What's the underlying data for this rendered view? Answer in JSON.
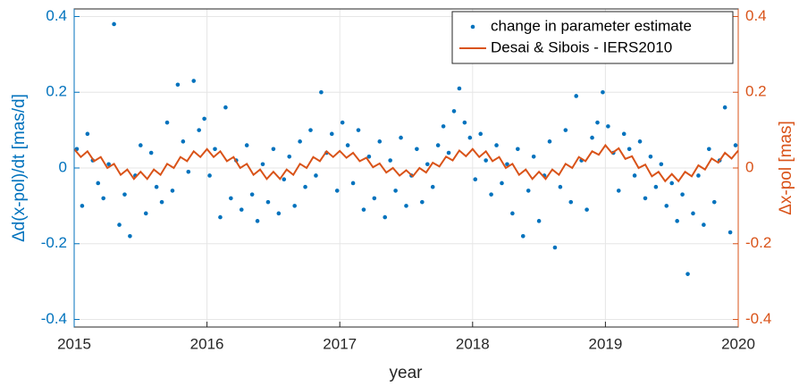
{
  "chart_data": {
    "type": "scatter",
    "xlabel": "year",
    "ylabel": "Δd(x-pol)/dt [mas/d]",
    "y2label": "Δx-pol [mas]",
    "xlim": [
      2015,
      2020
    ],
    "xticks": [
      2015,
      2016,
      2017,
      2018,
      2019,
      2020
    ],
    "ylim": [
      -0.42,
      0.42
    ],
    "yticks": [
      -0.4,
      -0.2,
      0,
      0.2,
      0.4
    ],
    "y2lim": [
      -0.42,
      0.42
    ],
    "y2ticks": [
      -0.4,
      -0.2,
      0,
      0.2,
      0.4
    ],
    "grid": true,
    "legend": "top-right",
    "series": [
      {
        "name": "change in parameter estimate",
        "type": "scatter",
        "color": "#0072BD",
        "x": [
          2015.02,
          2015.06,
          2015.1,
          2015.14,
          2015.18,
          2015.22,
          2015.26,
          2015.3,
          2015.34,
          2015.38,
          2015.42,
          2015.46,
          2015.5,
          2015.54,
          2015.58,
          2015.62,
          2015.66,
          2015.7,
          2015.74,
          2015.78,
          2015.82,
          2015.86,
          2015.9,
          2015.94,
          2015.98,
          2016.02,
          2016.06,
          2016.1,
          2016.14,
          2016.18,
          2016.22,
          2016.26,
          2016.3,
          2016.34,
          2016.38,
          2016.42,
          2016.46,
          2016.5,
          2016.54,
          2016.58,
          2016.62,
          2016.66,
          2016.7,
          2016.74,
          2016.78,
          2016.82,
          2016.86,
          2016.9,
          2016.94,
          2016.98,
          2017.02,
          2017.06,
          2017.1,
          2017.14,
          2017.18,
          2017.22,
          2017.26,
          2017.3,
          2017.34,
          2017.38,
          2017.42,
          2017.46,
          2017.5,
          2017.54,
          2017.58,
          2017.62,
          2017.66,
          2017.7,
          2017.74,
          2017.78,
          2017.82,
          2017.86,
          2017.9,
          2017.94,
          2017.98,
          2018.02,
          2018.06,
          2018.1,
          2018.14,
          2018.18,
          2018.22,
          2018.26,
          2018.3,
          2018.34,
          2018.38,
          2018.42,
          2018.46,
          2018.5,
          2018.54,
          2018.58,
          2018.62,
          2018.66,
          2018.7,
          2018.74,
          2018.78,
          2018.82,
          2018.86,
          2018.9,
          2018.94,
          2018.98,
          2019.02,
          2019.06,
          2019.1,
          2019.14,
          2019.18,
          2019.22,
          2019.26,
          2019.3,
          2019.34,
          2019.38,
          2019.42,
          2019.46,
          2019.5,
          2019.54,
          2019.58,
          2019.62,
          2019.66,
          2019.7,
          2019.74,
          2019.78,
          2019.82,
          2019.86,
          2019.9,
          2019.94,
          2019.98
        ],
        "values": [
          0.05,
          -0.1,
          0.09,
          0.02,
          -0.04,
          -0.08,
          0.01,
          0.38,
          -0.15,
          -0.07,
          -0.18,
          -0.02,
          0.06,
          -0.12,
          0.04,
          -0.05,
          -0.09,
          0.12,
          -0.06,
          0.22,
          0.07,
          -0.01,
          0.23,
          0.1,
          0.13,
          -0.02,
          0.05,
          -0.13,
          0.16,
          -0.08,
          0.02,
          -0.11,
          0.06,
          -0.07,
          -0.14,
          0.01,
          -0.09,
          0.05,
          -0.12,
          -0.03,
          0.03,
          -0.1,
          0.07,
          -0.05,
          0.1,
          -0.02,
          0.2,
          0.04,
          0.09,
          -0.06,
          0.12,
          0.06,
          -0.04,
          0.1,
          -0.11,
          0.03,
          -0.08,
          0.07,
          -0.13,
          0.02,
          -0.06,
          0.08,
          -0.1,
          -0.02,
          0.05,
          -0.09,
          0.01,
          -0.05,
          0.06,
          0.11,
          0.04,
          0.15,
          0.21,
          0.12,
          0.08,
          -0.03,
          0.09,
          0.02,
          -0.07,
          0.06,
          -0.04,
          0.01,
          -0.12,
          0.05,
          -0.18,
          -0.06,
          0.03,
          -0.14,
          -0.02,
          0.07,
          -0.21,
          -0.05,
          0.1,
          -0.09,
          0.19,
          0.02,
          -0.11,
          0.08,
          0.12,
          0.2,
          0.11,
          0.04,
          -0.06,
          0.09,
          0.05,
          -0.02,
          0.07,
          -0.08,
          0.03,
          -0.05,
          0.01,
          -0.1,
          -0.04,
          -0.14,
          -0.07,
          -0.28,
          -0.12,
          -0.02,
          -0.15,
          0.05,
          -0.09,
          0.02,
          0.16,
          -0.17,
          0.06
        ]
      },
      {
        "name": "Desai & Sibois - IERS2010",
        "type": "line",
        "axis": "y2",
        "color": "#D95319",
        "x": [
          2015,
          2015.05,
          2015.1,
          2015.15,
          2015.2,
          2015.25,
          2015.3,
          2015.35,
          2015.4,
          2015.45,
          2015.5,
          2015.55,
          2015.6,
          2015.65,
          2015.7,
          2015.75,
          2015.8,
          2015.85,
          2015.9,
          2015.95,
          2016,
          2016.05,
          2016.1,
          2016.15,
          2016.2,
          2016.25,
          2016.3,
          2016.35,
          2016.4,
          2016.45,
          2016.5,
          2016.55,
          2016.6,
          2016.65,
          2016.7,
          2016.75,
          2016.8,
          2016.85,
          2016.9,
          2016.95,
          2017,
          2017.05,
          2017.1,
          2017.15,
          2017.2,
          2017.25,
          2017.3,
          2017.35,
          2017.4,
          2017.45,
          2017.5,
          2017.55,
          2017.6,
          2017.65,
          2017.7,
          2017.75,
          2017.8,
          2017.85,
          2017.9,
          2017.95,
          2018,
          2018.05,
          2018.1,
          2018.15,
          2018.2,
          2018.25,
          2018.3,
          2018.35,
          2018.4,
          2018.45,
          2018.5,
          2018.55,
          2018.6,
          2018.65,
          2018.7,
          2018.75,
          2018.8,
          2018.85,
          2018.9,
          2018.95,
          2019,
          2019.05,
          2019.1,
          2019.15,
          2019.2,
          2019.25,
          2019.3,
          2019.35,
          2019.4,
          2019.45,
          2019.5,
          2019.55,
          2019.6,
          2019.65,
          2019.7,
          2019.75,
          2019.8,
          2019.85,
          2019.9,
          2019.95,
          2020
        ],
        "values": [
          0.05,
          0.029,
          0.044,
          0.018,
          0.029,
          0.0,
          0.011,
          -0.018,
          -0.004,
          -0.029,
          -0.01,
          -0.029,
          -0.004,
          -0.018,
          0.011,
          0.0,
          0.029,
          0.018,
          0.044,
          0.029,
          0.05,
          0.029,
          0.044,
          0.018,
          0.029,
          0.0,
          0.011,
          -0.018,
          -0.004,
          -0.029,
          -0.01,
          -0.029,
          -0.004,
          -0.018,
          0.011,
          0.0,
          0.029,
          0.018,
          0.044,
          0.029,
          0.045,
          0.027,
          0.04,
          0.018,
          0.027,
          0.002,
          0.012,
          -0.012,
          0.0,
          -0.02,
          -0.006,
          -0.022,
          0.0,
          -0.012,
          0.014,
          0.004,
          0.03,
          0.02,
          0.046,
          0.031,
          0.05,
          0.029,
          0.044,
          0.018,
          0.029,
          0.0,
          0.011,
          -0.018,
          -0.004,
          -0.029,
          -0.01,
          -0.029,
          -0.004,
          -0.018,
          0.011,
          0.0,
          0.029,
          0.018,
          0.044,
          0.035,
          0.06,
          0.039,
          0.052,
          0.024,
          0.031,
          0.0,
          0.009,
          -0.022,
          -0.01,
          -0.035,
          -0.016,
          -0.035,
          -0.01,
          -0.022,
          0.007,
          -0.004,
          0.025,
          0.014,
          0.04,
          0.025,
          0.046
        ]
      }
    ]
  }
}
